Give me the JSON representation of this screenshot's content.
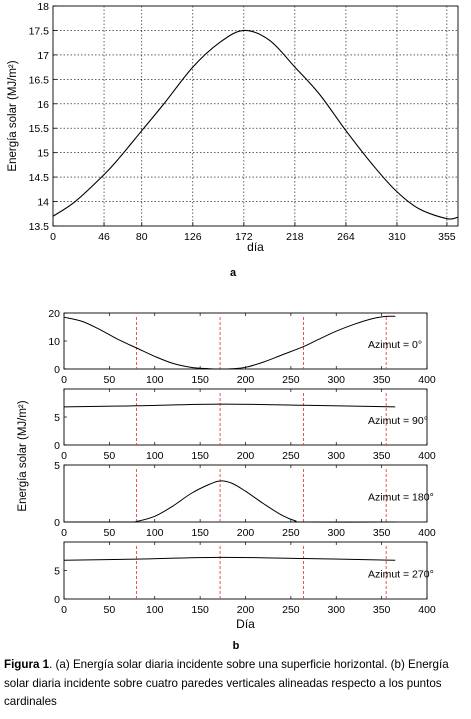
{
  "chart_data": [
    {
      "type": "line",
      "panel_label": "a",
      "ylabel": "Energía solar  (MJ/m²)",
      "xlabel": "día",
      "xlim": [
        0,
        365
      ],
      "ylim": [
        13.5,
        18
      ],
      "xticks": [
        0,
        46,
        80,
        126,
        172,
        218,
        264,
        310,
        355
      ],
      "yticks": [
        13.5,
        14,
        14.5,
        15,
        15.5,
        16,
        16.5,
        17,
        17.5,
        18
      ],
      "ytick_labels": [
        "13.5",
        "14",
        "14.5",
        "15",
        "15.5",
        "16",
        "16.5",
        "17",
        "17.5",
        "18"
      ],
      "grid": "dotted",
      "series": [
        {
          "x": [
            0,
            20,
            46,
            60,
            80,
            100,
            126,
            150,
            172,
            195,
            218,
            240,
            264,
            290,
            310,
            330,
            355,
            365
          ],
          "values": [
            13.7,
            14.0,
            14.55,
            14.9,
            15.45,
            16.0,
            16.75,
            17.25,
            17.5,
            17.3,
            16.75,
            16.2,
            15.45,
            14.7,
            14.2,
            13.85,
            13.65,
            13.68
          ]
        }
      ]
    },
    {
      "type": "line",
      "panel_label": "b",
      "ylabel": "Energía solar  (MJ/m²)",
      "xlabel": "Día",
      "xlim": [
        0,
        400
      ],
      "xticks": [
        0,
        50,
        100,
        150,
        200,
        250,
        300,
        350,
        400
      ],
      "reference_lines_x": [
        80,
        172,
        264,
        355
      ],
      "panels": [
        {
          "annotation": "Azimut  =   0°",
          "ylim": [
            0,
            20
          ],
          "yticks": [
            0,
            10,
            20
          ],
          "x": [
            0,
            20,
            40,
            60,
            80,
            100,
            120,
            140,
            160,
            172,
            185,
            200,
            220,
            240,
            264,
            280,
            300,
            320,
            340,
            355,
            365
          ],
          "values": [
            18.5,
            17,
            14,
            10.5,
            7.5,
            4.5,
            2,
            0.6,
            0.1,
            0,
            0.1,
            0.6,
            2.5,
            5,
            8,
            10.5,
            13.5,
            16,
            18,
            18.8,
            18.8
          ]
        },
        {
          "annotation": "Azimut  =  90°",
          "ylim": [
            0,
            10
          ],
          "yticks": [
            0,
            5
          ],
          "x": [
            0,
            80,
            172,
            264,
            365
          ],
          "values": [
            6.8,
            7.0,
            7.3,
            7.1,
            6.8
          ]
        },
        {
          "annotation": "Azimut  = 180°",
          "ylim": [
            0,
            5
          ],
          "yticks": [
            0,
            5
          ],
          "x": [
            0,
            70,
            80,
            100,
            120,
            140,
            160,
            172,
            185,
            200,
            220,
            240,
            255,
            264,
            365
          ],
          "values": [
            0,
            0,
            0.05,
            0.5,
            1.4,
            2.5,
            3.3,
            3.6,
            3.4,
            2.7,
            1.6,
            0.6,
            0.1,
            0,
            0
          ]
        },
        {
          "annotation": "Azimut  = 270°",
          "ylim": [
            0,
            10
          ],
          "yticks": [
            0,
            5
          ],
          "x": [
            0,
            80,
            172,
            264,
            365
          ],
          "values": [
            6.8,
            7.0,
            7.3,
            7.1,
            6.8
          ]
        }
      ]
    }
  ],
  "caption": {
    "label": "Figura 1",
    "text": ". (a) Energía solar diaria incidente sobre una superficie horizontal. (b) Energía solar diaria incidente sobre cuatro paredes verticales alineadas respecto a los puntos cardinales"
  }
}
